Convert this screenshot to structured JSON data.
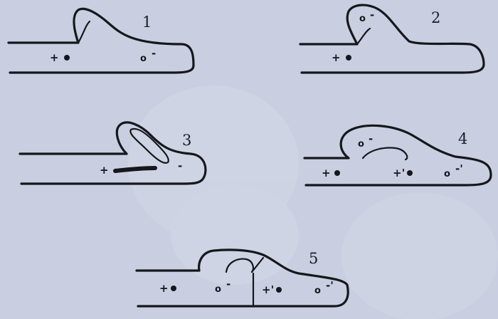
{
  "panels": [
    {
      "number": "1",
      "marks": [
        {
          "text": "+"
        },
        {
          "text": "o",
          "sign": "-"
        }
      ]
    },
    {
      "number": "2",
      "marks": [
        {
          "text": "o",
          "sign": "-"
        },
        {
          "text": "+"
        }
      ]
    },
    {
      "number": "3",
      "marks": [
        {
          "text": "+"
        },
        {
          "text": "-"
        }
      ]
    },
    {
      "number": "4",
      "marks": [
        {
          "text": "o",
          "sign": "-"
        },
        {
          "text": "+"
        },
        {
          "text": "+'"
        },
        {
          "text": "o",
          "sign": "-'"
        }
      ]
    },
    {
      "number": "5",
      "marks": [
        {
          "text": "+"
        },
        {
          "text": "o",
          "sign": "-"
        },
        {
          "text": "+'"
        },
        {
          "text": "o",
          "sign": "-'"
        }
      ]
    }
  ],
  "colors": {
    "paper": "#c9cfe0",
    "ink": "#16171c"
  }
}
